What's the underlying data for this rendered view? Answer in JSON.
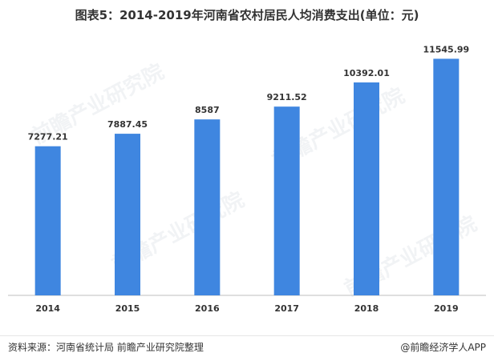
{
  "chart_data": {
    "type": "bar",
    "title": "图表5：2014-2019年河南省农村居民人均消费支出(单位：元)",
    "categories": [
      "2014",
      "2015",
      "2016",
      "2017",
      "2018",
      "2019"
    ],
    "values": [
      7277.21,
      7887.45,
      8587,
      9211.52,
      10392.01,
      11545.99
    ],
    "value_labels": [
      "7277.21",
      "7887.45",
      "8587",
      "9211.52",
      "10392.01",
      "11545.99"
    ],
    "ylim": [
      0,
      12500
    ],
    "grid": false,
    "colors": {
      "bar": "#3f86e0",
      "axis": "#bfbfbf",
      "text": "#333333"
    }
  },
  "watermark": "前瞻产业研究院",
  "footer": {
    "source": "资料来源：河南省统计局 前瞻产业研究院整理",
    "brand": "@前瞻经济学人APP"
  }
}
